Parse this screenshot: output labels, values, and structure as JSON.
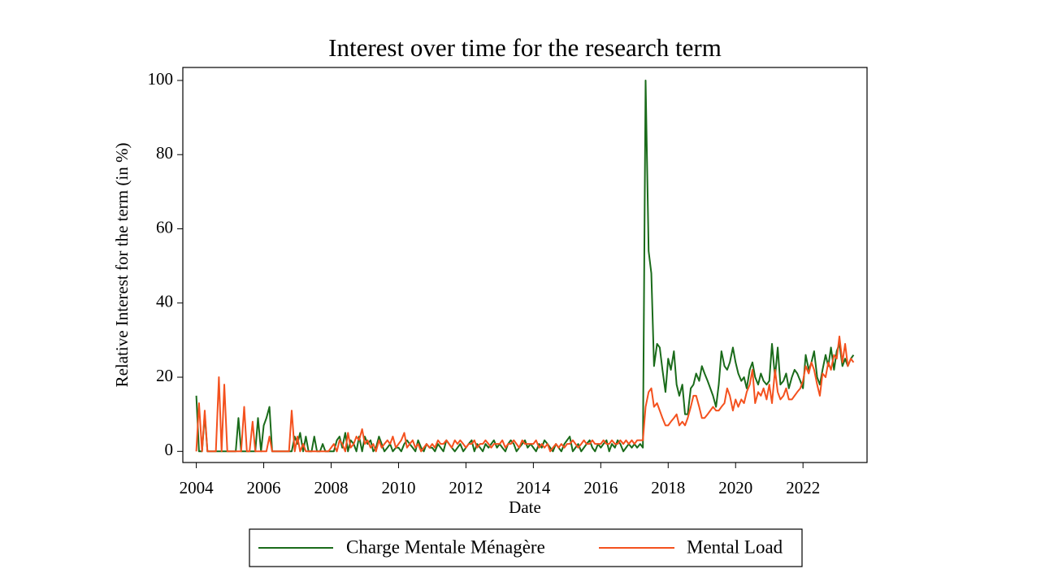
{
  "chart_data": {
    "type": "line",
    "title": "Interest over time for the research term",
    "xlabel": "Date",
    "ylabel": "Relative Interest for the term (in %)",
    "xlim": [
      2003.6,
      2023.9
    ],
    "ylim": [
      -3,
      103.5
    ],
    "xticks": [
      2004,
      2006,
      2008,
      2010,
      2012,
      2014,
      2016,
      2018,
      2020,
      2022
    ],
    "yticks": [
      0,
      20,
      40,
      60,
      80,
      100
    ],
    "grid": false,
    "legend": "bottom",
    "x": [
      2004.0,
      2004.08,
      2004.17,
      2004.25,
      2004.33,
      2004.42,
      2004.5,
      2004.58,
      2004.67,
      2004.75,
      2004.83,
      2004.92,
      2005.0,
      2005.08,
      2005.17,
      2005.25,
      2005.33,
      2005.42,
      2005.5,
      2005.58,
      2005.67,
      2005.75,
      2005.83,
      2005.92,
      2006.0,
      2006.08,
      2006.17,
      2006.25,
      2006.33,
      2006.42,
      2006.5,
      2006.58,
      2006.67,
      2006.75,
      2006.83,
      2006.92,
      2007.0,
      2007.08,
      2007.17,
      2007.25,
      2007.33,
      2007.42,
      2007.5,
      2007.58,
      2007.67,
      2007.75,
      2007.83,
      2007.92,
      2008.0,
      2008.08,
      2008.17,
      2008.25,
      2008.33,
      2008.42,
      2008.5,
      2008.58,
      2008.67,
      2008.75,
      2008.83,
      2008.92,
      2009.0,
      2009.08,
      2009.17,
      2009.25,
      2009.33,
      2009.42,
      2009.5,
      2009.58,
      2009.67,
      2009.75,
      2009.83,
      2009.92,
      2010.0,
      2010.08,
      2010.17,
      2010.25,
      2010.33,
      2010.42,
      2010.5,
      2010.58,
      2010.67,
      2010.75,
      2010.83,
      2010.92,
      2011.0,
      2011.08,
      2011.17,
      2011.25,
      2011.33,
      2011.42,
      2011.5,
      2011.58,
      2011.67,
      2011.75,
      2011.83,
      2011.92,
      2012.0,
      2012.08,
      2012.17,
      2012.25,
      2012.33,
      2012.42,
      2012.5,
      2012.58,
      2012.67,
      2012.75,
      2012.83,
      2012.92,
      2013.0,
      2013.08,
      2013.17,
      2013.25,
      2013.33,
      2013.42,
      2013.5,
      2013.58,
      2013.67,
      2013.75,
      2013.83,
      2013.92,
      2014.0,
      2014.08,
      2014.17,
      2014.25,
      2014.33,
      2014.42,
      2014.5,
      2014.58,
      2014.67,
      2014.75,
      2014.83,
      2014.92,
      2015.0,
      2015.08,
      2015.17,
      2015.25,
      2015.33,
      2015.42,
      2015.5,
      2015.58,
      2015.67,
      2015.75,
      2015.83,
      2015.92,
      2016.0,
      2016.08,
      2016.17,
      2016.25,
      2016.33,
      2016.42,
      2016.5,
      2016.58,
      2016.67,
      2016.75,
      2016.83,
      2016.92,
      2017.0,
      2017.08,
      2017.17,
      2017.25,
      2017.33,
      2017.42,
      2017.5,
      2017.58,
      2017.67,
      2017.75,
      2017.83,
      2017.92,
      2018.0,
      2018.08,
      2018.17,
      2018.25,
      2018.33,
      2018.42,
      2018.5,
      2018.58,
      2018.67,
      2018.75,
      2018.83,
      2018.92,
      2019.0,
      2019.08,
      2019.17,
      2019.25,
      2019.33,
      2019.42,
      2019.5,
      2019.58,
      2019.67,
      2019.75,
      2019.83,
      2019.92,
      2020.0,
      2020.08,
      2020.17,
      2020.25,
      2020.33,
      2020.42,
      2020.5,
      2020.58,
      2020.67,
      2020.75,
      2020.83,
      2020.92,
      2021.0,
      2021.08,
      2021.17,
      2021.25,
      2021.33,
      2021.42,
      2021.5,
      2021.58,
      2021.67,
      2021.75,
      2021.83,
      2021.92,
      2022.0,
      2022.08,
      2022.17,
      2022.25,
      2022.33,
      2022.42,
      2022.5,
      2022.58,
      2022.67,
      2022.75,
      2022.83,
      2022.92,
      2023.0,
      2023.08,
      2023.17,
      2023.25,
      2023.33,
      2023.42,
      2023.5
    ],
    "series": [
      {
        "name": "Charge Mentale Ménagère",
        "color": "#1a6b1a",
        "values": [
          15,
          0,
          0,
          10,
          0,
          0,
          0,
          0,
          0,
          0,
          0,
          0,
          0,
          0,
          0,
          9,
          0,
          0,
          0,
          0,
          0,
          0,
          9,
          0,
          7,
          9,
          12,
          0,
          0,
          0,
          0,
          0,
          0,
          0,
          0,
          4,
          2,
          5,
          0,
          4,
          0,
          0,
          4,
          0,
          0,
          2,
          0,
          0,
          0,
          0,
          3,
          4,
          1,
          5,
          0,
          3,
          2,
          0,
          4,
          0,
          4,
          2,
          3,
          0,
          1,
          4,
          2,
          0,
          1,
          2,
          0,
          1,
          1,
          0,
          2,
          3,
          2,
          1,
          0,
          3,
          1,
          0,
          2,
          1,
          1,
          0,
          2,
          1,
          0,
          3,
          2,
          1,
          0,
          1,
          2,
          0,
          1,
          2,
          3,
          0,
          2,
          1,
          0,
          2,
          1,
          2,
          3,
          1,
          2,
          1,
          0,
          2,
          3,
          2,
          0,
          1,
          2,
          3,
          1,
          2,
          1,
          0,
          2,
          1,
          3,
          2,
          1,
          0,
          2,
          1,
          0,
          2,
          3,
          4,
          0,
          1,
          2,
          0,
          1,
          2,
          3,
          1,
          0,
          2,
          1,
          2,
          3,
          0,
          2,
          1,
          3,
          2,
          0,
          1,
          2,
          1,
          2,
          1,
          2,
          1,
          100,
          54,
          48,
          23,
          29,
          28,
          22,
          16,
          25,
          22,
          27,
          18,
          15,
          18,
          10,
          10,
          17,
          18,
          21,
          19,
          23,
          21,
          19,
          17,
          15,
          12,
          18,
          27,
          23,
          22,
          24,
          28,
          24,
          21,
          19,
          20,
          17,
          22,
          24,
          20,
          18,
          21,
          19,
          18,
          19,
          29,
          20,
          28,
          18,
          19,
          21,
          17,
          20,
          22,
          21,
          19,
          17,
          26,
          22,
          24,
          27,
          20,
          18,
          22,
          26,
          23,
          28,
          22,
          27,
          29,
          23,
          25,
          23,
          25,
          26
        ]
      },
      {
        "name": "Mental Load",
        "color": "#f4511e",
        "values": [
          0,
          13,
          0,
          11,
          0,
          0,
          0,
          0,
          20,
          0,
          18,
          0,
          0,
          0,
          0,
          0,
          0,
          12,
          0,
          0,
          8,
          0,
          0,
          0,
          0,
          0,
          4,
          0,
          0,
          0,
          0,
          0,
          0,
          0,
          11,
          0,
          4,
          0,
          2,
          0,
          0,
          0,
          0,
          0,
          0,
          0,
          0,
          0,
          1,
          2,
          0,
          3,
          2,
          0,
          5,
          1,
          2,
          4,
          3,
          6,
          2,
          3,
          1,
          2,
          0,
          3,
          1,
          2,
          3,
          2,
          4,
          1,
          2,
          3,
          5,
          1,
          2,
          3,
          1,
          2,
          0,
          1,
          2,
          1,
          2,
          1,
          3,
          2,
          2,
          3,
          2,
          1,
          3,
          2,
          3,
          2,
          1,
          2,
          2,
          3,
          1,
          2,
          2,
          3,
          2,
          1,
          2,
          2,
          2,
          3,
          1,
          2,
          2,
          3,
          2,
          1,
          3,
          2,
          2,
          2,
          2,
          3,
          1,
          2,
          1,
          2,
          0,
          1,
          2,
          1,
          2,
          1,
          2,
          2,
          3,
          2,
          1,
          2,
          3,
          2,
          2,
          3,
          2,
          2,
          2,
          3,
          2,
          2,
          3,
          2,
          2,
          3,
          2,
          3,
          2,
          3,
          2,
          3,
          3,
          3,
          12,
          16,
          17,
          12,
          13,
          11,
          9,
          7,
          7,
          8,
          9,
          10,
          7,
          8,
          7,
          9,
          12,
          15,
          15,
          12,
          9,
          9,
          10,
          11,
          12,
          11,
          11,
          12,
          13,
          17,
          15,
          11,
          14,
          12,
          14,
          13,
          16,
          18,
          22,
          13,
          16,
          15,
          17,
          14,
          18,
          13,
          22,
          16,
          14,
          15,
          17,
          14,
          14,
          15,
          16,
          17,
          19,
          23,
          21,
          24,
          22,
          18,
          15,
          21,
          20,
          24,
          22,
          26,
          25,
          31,
          24,
          29,
          23,
          25,
          24
        ]
      }
    ]
  }
}
